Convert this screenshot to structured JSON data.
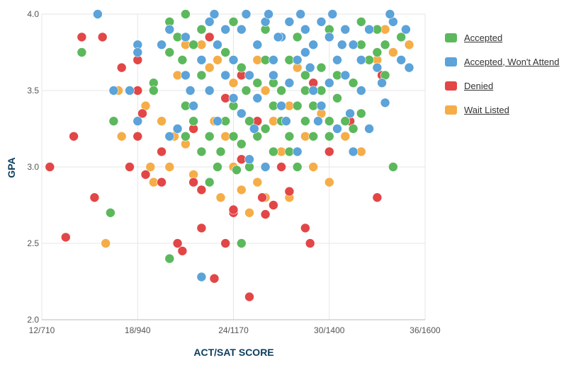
{
  "chart_data": {
    "type": "scatter",
    "xlabel": "ACT/SAT SCORE",
    "ylabel": "GPA",
    "x_ticks": [
      "12/710",
      "18/940",
      "24/1170",
      "30/1400",
      "36/1600"
    ],
    "x_tick_values": [
      12,
      18,
      24,
      30,
      36
    ],
    "y_ticks": [
      "2.0",
      "2.5",
      "3.0",
      "3.5",
      "4.0"
    ],
    "y_tick_values": [
      2.0,
      2.5,
      3.0,
      3.5,
      4.0
    ],
    "xlim": [
      12,
      36
    ],
    "ylim": [
      2.0,
      4.0
    ],
    "grid": true,
    "legend_position": "right",
    "series": [
      {
        "name": "Accepted",
        "color": "#5cb85c",
        "points": [
          [
            14.5,
            3.75
          ],
          [
            16.3,
            2.7
          ],
          [
            16.5,
            3.3
          ],
          [
            19.0,
            3.55
          ],
          [
            19.0,
            3.5
          ],
          [
            20.0,
            3.95
          ],
          [
            20.0,
            3.75
          ],
          [
            20.0,
            2.4
          ],
          [
            20.5,
            3.85
          ],
          [
            20.8,
            3.7
          ],
          [
            21.0,
            3.4
          ],
          [
            21.0,
            3.2
          ],
          [
            21.5,
            3.8
          ],
          [
            21.5,
            3.3
          ],
          [
            22.0,
            3.6
          ],
          [
            22.0,
            3.1
          ],
          [
            22.5,
            3.2
          ],
          [
            22.5,
            2.9
          ],
          [
            22.5,
            3.5
          ],
          [
            23.0,
            3.0
          ],
          [
            23.2,
            3.1
          ],
          [
            23.5,
            3.3
          ],
          [
            23.5,
            3.6
          ],
          [
            24.0,
            3.2
          ],
          [
            24.0,
            3.4
          ],
          [
            24.2,
            2.98
          ],
          [
            24.5,
            3.15
          ],
          [
            24.5,
            2.5
          ],
          [
            24.8,
            3.5
          ],
          [
            25.0,
            3.3
          ],
          [
            25.0,
            3.0
          ],
          [
            25.5,
            3.2
          ],
          [
            25.5,
            3.55
          ],
          [
            26.0,
            3.25
          ],
          [
            26.0,
            3.7
          ],
          [
            26.5,
            3.4
          ],
          [
            26.5,
            3.1
          ],
          [
            27.0,
            3.3
          ],
          [
            27.0,
            3.5
          ],
          [
            27.5,
            3.2
          ],
          [
            27.5,
            3.1
          ],
          [
            28.0,
            3.4
          ],
          [
            28.0,
            3.0
          ],
          [
            28.5,
            3.3
          ],
          [
            28.5,
            3.6
          ],
          [
            29.0,
            3.4
          ],
          [
            29.0,
            3.2
          ],
          [
            29.5,
            3.5
          ],
          [
            30.0,
            3.3
          ],
          [
            30.0,
            3.2
          ],
          [
            30.5,
            3.6
          ],
          [
            30.5,
            3.45
          ],
          [
            31.0,
            3.3
          ],
          [
            31.5,
            3.25
          ],
          [
            32.0,
            3.8
          ],
          [
            32.0,
            3.35
          ],
          [
            32.5,
            3.7
          ],
          [
            33.0,
            3.9
          ],
          [
            33.0,
            3.75
          ],
          [
            33.5,
            3.8
          ],
          [
            34.0,
            3.0
          ],
          [
            34.5,
            3.85
          ],
          [
            24.0,
            3.95
          ],
          [
            26.0,
            3.9
          ],
          [
            28.0,
            3.85
          ],
          [
            30.0,
            3.9
          ],
          [
            32.0,
            3.95
          ],
          [
            22.0,
            3.9
          ],
          [
            21.0,
            4.0
          ],
          [
            23.5,
            3.75
          ],
          [
            25.5,
            3.8
          ],
          [
            27.5,
            3.7
          ],
          [
            29.5,
            3.65
          ],
          [
            31.5,
            3.55
          ],
          [
            33.5,
            3.6
          ],
          [
            24.5,
            3.65
          ],
          [
            26.5,
            3.55
          ],
          [
            28.5,
            3.5
          ]
        ]
      },
      {
        "name": "Accepted, Won't Attend",
        "color": "#5ba3d9",
        "points": [
          [
            15.5,
            4.0
          ],
          [
            16.5,
            3.5
          ],
          [
            17.5,
            3.5
          ],
          [
            18.0,
            3.8
          ],
          [
            18.0,
            3.75
          ],
          [
            18.0,
            3.3
          ],
          [
            19.5,
            3.8
          ],
          [
            20.0,
            3.9
          ],
          [
            20.0,
            3.2
          ],
          [
            20.5,
            3.25
          ],
          [
            21.0,
            3.85
          ],
          [
            21.0,
            3.6
          ],
          [
            21.5,
            3.4
          ],
          [
            22.0,
            3.7
          ],
          [
            22.0,
            2.28
          ],
          [
            22.5,
            3.95
          ],
          [
            22.5,
            3.5
          ],
          [
            23.0,
            3.8
          ],
          [
            23.0,
            3.3
          ],
          [
            23.5,
            3.6
          ],
          [
            23.5,
            3.9
          ],
          [
            24.0,
            3.7
          ],
          [
            24.0,
            3.45
          ],
          [
            24.5,
            3.35
          ],
          [
            24.5,
            3.9
          ],
          [
            25.0,
            3.6
          ],
          [
            25.0,
            3.05
          ],
          [
            25.5,
            3.8
          ],
          [
            25.5,
            3.45
          ],
          [
            26.0,
            3.0
          ],
          [
            26.0,
            3.95
          ],
          [
            26.5,
            3.6
          ],
          [
            26.5,
            3.7
          ],
          [
            27.0,
            3.85
          ],
          [
            27.0,
            3.4
          ],
          [
            27.5,
            3.95
          ],
          [
            27.5,
            3.55
          ],
          [
            28.0,
            3.7
          ],
          [
            28.0,
            3.1
          ],
          [
            28.5,
            3.9
          ],
          [
            28.5,
            3.75
          ],
          [
            29.0,
            3.8
          ],
          [
            29.0,
            3.5
          ],
          [
            29.5,
            3.95
          ],
          [
            29.5,
            3.4
          ],
          [
            30.0,
            3.85
          ],
          [
            30.0,
            3.55
          ],
          [
            30.5,
            3.7
          ],
          [
            30.5,
            3.25
          ],
          [
            31.0,
            3.9
          ],
          [
            31.0,
            3.6
          ],
          [
            31.5,
            3.8
          ],
          [
            31.5,
            3.1
          ],
          [
            32.0,
            3.7
          ],
          [
            32.0,
            3.5
          ],
          [
            32.5,
            3.9
          ],
          [
            32.5,
            3.25
          ],
          [
            33.0,
            3.65
          ],
          [
            33.5,
            3.42
          ],
          [
            34.0,
            3.95
          ],
          [
            34.5,
            3.7
          ],
          [
            35.0,
            3.65
          ],
          [
            34.8,
            3.9
          ],
          [
            33.8,
            4.0
          ],
          [
            30.2,
            4.0
          ],
          [
            28.2,
            4.0
          ],
          [
            26.2,
            4.0
          ],
          [
            24.8,
            4.0
          ],
          [
            22.8,
            4.0
          ],
          [
            21.3,
            3.5
          ],
          [
            25.3,
            3.25
          ],
          [
            27.3,
            3.3
          ],
          [
            29.3,
            3.3
          ],
          [
            31.3,
            3.35
          ],
          [
            33.3,
            3.55
          ],
          [
            26.8,
            3.85
          ],
          [
            28.8,
            3.65
          ],
          [
            30.8,
            3.8
          ]
        ]
      },
      {
        "name": "Denied",
        "color": "#e24646",
        "points": [
          [
            12.5,
            3.0
          ],
          [
            13.5,
            2.54
          ],
          [
            14.0,
            3.2
          ],
          [
            14.5,
            3.85
          ],
          [
            15.3,
            2.8
          ],
          [
            15.8,
            3.85
          ],
          [
            17.0,
            3.65
          ],
          [
            17.5,
            3.0
          ],
          [
            18.0,
            3.5
          ],
          [
            18.0,
            3.7
          ],
          [
            18.0,
            3.2
          ],
          [
            18.3,
            3.35
          ],
          [
            18.5,
            2.95
          ],
          [
            19.5,
            3.1
          ],
          [
            19.5,
            2.9
          ],
          [
            20.0,
            3.75
          ],
          [
            20.5,
            2.5
          ],
          [
            20.8,
            2.45
          ],
          [
            21.0,
            3.6
          ],
          [
            21.5,
            2.9
          ],
          [
            21.5,
            3.25
          ],
          [
            22.0,
            2.6
          ],
          [
            22.0,
            2.85
          ],
          [
            22.5,
            3.85
          ],
          [
            22.8,
            2.27
          ],
          [
            23.0,
            3.0
          ],
          [
            23.5,
            2.5
          ],
          [
            23.5,
            3.45
          ],
          [
            24.0,
            2.7
          ],
          [
            24.0,
            2.72
          ],
          [
            24.5,
            3.6
          ],
          [
            24.5,
            3.05
          ],
          [
            25.0,
            2.15
          ],
          [
            25.5,
            3.3
          ],
          [
            25.8,
            2.8
          ],
          [
            26.0,
            2.69
          ],
          [
            26.5,
            2.75
          ],
          [
            26.5,
            3.1
          ],
          [
            27.0,
            3.0
          ],
          [
            27.5,
            2.84
          ],
          [
            27.5,
            3.2
          ],
          [
            28.0,
            3.0
          ],
          [
            28.5,
            2.6
          ],
          [
            28.8,
            2.5
          ],
          [
            29.0,
            3.55
          ],
          [
            30.0,
            3.1
          ],
          [
            31.3,
            3.3
          ],
          [
            33.0,
            2.8
          ],
          [
            33.3,
            3.6
          ]
        ]
      },
      {
        "name": "Wait Listed",
        "color": "#f5ad48",
        "points": [
          [
            16.0,
            2.5
          ],
          [
            16.8,
            3.5
          ],
          [
            17.0,
            3.2
          ],
          [
            18.0,
            3.2
          ],
          [
            18.5,
            3.4
          ],
          [
            18.8,
            3.0
          ],
          [
            19.0,
            2.9
          ],
          [
            19.5,
            3.8
          ],
          [
            19.5,
            3.3
          ],
          [
            20.0,
            3.0
          ],
          [
            20.3,
            3.2
          ],
          [
            20.5,
            3.6
          ],
          [
            21.0,
            3.15
          ],
          [
            21.0,
            3.8
          ],
          [
            21.5,
            2.95
          ],
          [
            22.0,
            3.1
          ],
          [
            22.0,
            3.8
          ],
          [
            22.5,
            3.65
          ],
          [
            22.8,
            3.3
          ],
          [
            23.0,
            3.7
          ],
          [
            23.2,
            2.8
          ],
          [
            23.5,
            3.2
          ],
          [
            24.0,
            3.0
          ],
          [
            24.0,
            3.55
          ],
          [
            24.5,
            2.85
          ],
          [
            25.0,
            2.7
          ],
          [
            25.0,
            3.3
          ],
          [
            25.5,
            2.9
          ],
          [
            25.5,
            3.7
          ],
          [
            26.0,
            2.8
          ],
          [
            26.0,
            3.5
          ],
          [
            26.5,
            3.3
          ],
          [
            27.0,
            3.1
          ],
          [
            27.5,
            3.4
          ],
          [
            27.5,
            2.8
          ],
          [
            28.0,
            3.65
          ],
          [
            28.5,
            3.2
          ],
          [
            29.0,
            3.0
          ],
          [
            29.5,
            3.35
          ],
          [
            30.0,
            2.9
          ],
          [
            31.0,
            3.2
          ],
          [
            32.0,
            3.1
          ],
          [
            33.0,
            3.7
          ],
          [
            33.5,
            3.9
          ],
          [
            35.0,
            3.8
          ],
          [
            34.0,
            3.75
          ]
        ]
      }
    ]
  }
}
